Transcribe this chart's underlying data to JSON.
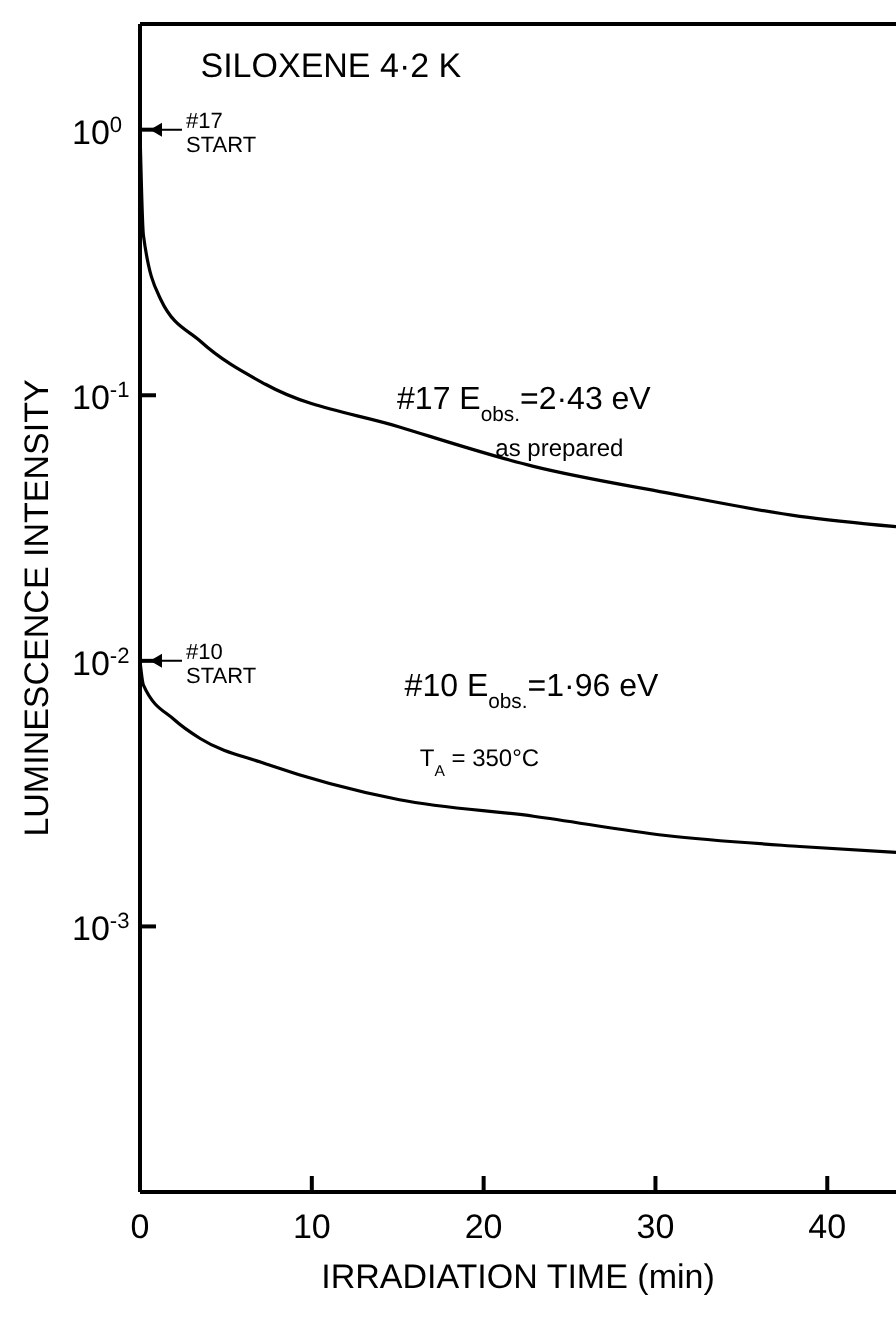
{
  "chart_data": {
    "type": "line",
    "xlabel": "IRRADIATION  TIME (min)",
    "ylabel": "LUMINESCENCE  INTENSITY",
    "log": "y",
    "xlim": [
      0,
      44
    ],
    "ylim": [
      0.0001,
      2.5
    ],
    "xticks": [
      0,
      10,
      20,
      30,
      40
    ],
    "yticks": [
      {
        "value": 1,
        "label": "10$^{0}$"
      },
      {
        "value": 0.1,
        "label": "10$^{-1}$"
      },
      {
        "value": 0.01,
        "label": "10$^{-2}$"
      },
      {
        "value": 0.001,
        "label": "10$^{-3}$"
      }
    ],
    "marker": "none",
    "line_style": "solid",
    "series": [
      {
        "color": "#000000",
        "x": [
          0,
          0.2,
          1.2,
          3.5,
          7.3,
          15.1,
          22.9,
          30.6,
          38.4,
          44
        ],
        "values": [
          1,
          0.4,
          0.23,
          0.16,
          0.11,
          0.076,
          0.054,
          0.043,
          0.035,
          0.032
        ]
      },
      {
        "color": "#000000",
        "x": [
          0,
          0.2,
          2,
          3.5,
          7.3,
          15.1,
          22.9,
          30.6,
          38.4,
          44
        ],
        "values": [
          0.01,
          0.0081,
          0.006,
          0.0051,
          0.0041,
          0.003,
          0.0026,
          0.0022,
          0.002,
          0.0019
        ]
      }
    ],
    "annotations": [
      "SILOXENE  4·2 K",
      {
        "text": "#17\nSTART",
        "x": 0,
        "y": 1
      },
      {
        "text": "#10\nSTART",
        "x": 0,
        "y": 0.01
      },
      "#17   E$_{obs.}$=2·43 eV",
      "as prepared",
      "#10   E$_{obs.}$=1·96 eV",
      "T$_{A}$ = 350°C"
    ]
  }
}
